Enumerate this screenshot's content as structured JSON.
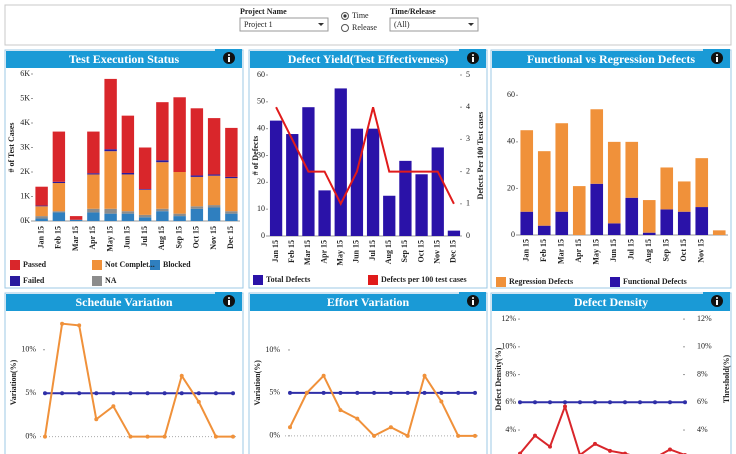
{
  "filters": {
    "project_label": "Project Name",
    "project_value": "Project 1",
    "time_option": "Time",
    "release_option": "Release",
    "time_release_label": "Time/Release",
    "time_release_value": "(All)"
  },
  "chart_data": [
    {
      "type": "bar",
      "stacked": true,
      "title": "Test Execution Status",
      "ylabel": "# of Test Cases",
      "categories": [
        "Jan 15",
        "Feb 15",
        "Mar 15",
        "Apr 15",
        "May 15",
        "Jun 15",
        "Jul 15",
        "Aug 15",
        "Sep 15",
        "Oct 15",
        "Nov 15",
        "Dec 15"
      ],
      "series": [
        {
          "name": "Blocked",
          "color": "#2f7fbf",
          "values": [
            100,
            350,
            50,
            350,
            300,
            300,
            150,
            400,
            200,
            500,
            550,
            300
          ]
        },
        {
          "name": "NA",
          "color": "#8c8c8c",
          "values": [
            100,
            50,
            0,
            150,
            200,
            100,
            100,
            100,
            100,
            100,
            100,
            100
          ]
        },
        {
          "name": "Not Complet...",
          "color": "#f0913a",
          "values": [
            400,
            1150,
            0,
            1400,
            2350,
            1500,
            1020,
            1900,
            1700,
            1200,
            1200,
            1350
          ]
        },
        {
          "name": "Failed",
          "color": "#2a1a9e",
          "values": [
            30,
            50,
            0,
            50,
            80,
            60,
            30,
            80,
            0,
            60,
            50,
            50
          ]
        },
        {
          "name": "Passed",
          "color": "#d9262b",
          "values": [
            770,
            2050,
            150,
            1700,
            2870,
            2340,
            1700,
            2370,
            3050,
            2740,
            2300,
            2000
          ]
        }
      ],
      "ylim": [
        0,
        6000
      ],
      "yticks": [
        {
          "value": 0,
          "label": "0K"
        },
        {
          "value": 1000,
          "label": "1K"
        },
        {
          "value": 2000,
          "label": "2K"
        },
        {
          "value": 3000,
          "label": "3K"
        },
        {
          "value": 4000,
          "label": "4K"
        },
        {
          "value": 5000,
          "label": "5K"
        },
        {
          "value": 6000,
          "label": "6K"
        }
      ]
    },
    {
      "type": "combo",
      "title": "Defect Yield(Test Effectiveness)",
      "ylabel": "# of Defects",
      "y2label": "Defects Per 100 Test cases",
      "categories": [
        "Jan 15",
        "Feb 15",
        "Mar 15",
        "Apr 15",
        "May 15",
        "Jun 15",
        "Jul 15",
        "Aug 15",
        "Sep 15",
        "Oct 15",
        "Nov 15",
        "Dec 15"
      ],
      "series": [
        {
          "name": "Total Defects",
          "color": "#2a12a8",
          "values": [
            43,
            38,
            48,
            17,
            55,
            40,
            40,
            15,
            28,
            23,
            33,
            2
          ]
        },
        {
          "name": "Defects per 100 test cases",
          "color": "#e01b1b",
          "axis": "y2",
          "values": [
            4,
            3,
            2,
            2,
            1,
            2,
            4,
            2,
            2,
            2,
            2,
            1
          ]
        }
      ],
      "ylim": [
        0,
        60
      ],
      "yticks": [
        0,
        10,
        20,
        30,
        40,
        50,
        60
      ],
      "y2lim": [
        0,
        5
      ],
      "y2ticks": [
        0,
        1,
        2,
        3,
        4,
        5
      ]
    },
    {
      "type": "bar",
      "stacked": true,
      "title": "Functional vs Regression Defects",
      "categories": [
        "Jan 15",
        "Feb 15",
        "Mar 15",
        "Apr 15",
        "May 15",
        "Jun 15",
        "Jul 15",
        "Aug 15",
        "Sep 15",
        "Oct 15",
        "Nov 15",
        null
      ],
      "series": [
        {
          "name": "Functional Defects",
          "color": "#2a12a8",
          "values": [
            10,
            4,
            10,
            0,
            22,
            5,
            16,
            1,
            11,
            10,
            12,
            0
          ]
        },
        {
          "name": "Regression Defects",
          "color": "#f0913a",
          "values": [
            35,
            32,
            38,
            21,
            32,
            35,
            24,
            14,
            18,
            13,
            21,
            2
          ]
        }
      ],
      "ylim": [
        0,
        70
      ],
      "yticks": [
        0,
        20,
        40,
        60
      ]
    },
    {
      "type": "line",
      "title": "Schedule Variation",
      "ylabel": "Variation(%)",
      "series": [
        {
          "color": "#2f2fa8",
          "values": [
            5,
            5,
            5,
            5,
            5,
            5,
            5,
            5,
            5,
            5,
            5,
            5
          ]
        },
        {
          "color": "#f0913a",
          "values": [
            0,
            13,
            12.8,
            2,
            3.5,
            0,
            0,
            0,
            7,
            4,
            0,
            0
          ]
        }
      ],
      "ylim": [
        -2,
        14
      ],
      "yticks": [
        {
          "value": 0,
          "label": "0%"
        },
        {
          "value": 5,
          "label": "5%"
        },
        {
          "value": 10,
          "label": "10%"
        }
      ]
    },
    {
      "type": "line",
      "title": "Effort Variation",
      "ylabel": "Variation(%)",
      "series": [
        {
          "color": "#2f2fa8",
          "values": [
            5,
            5,
            5,
            5,
            5,
            5,
            5,
            5,
            5,
            5,
            5,
            5
          ]
        },
        {
          "color": "#f0913a",
          "values": [
            1,
            5,
            7,
            3,
            2,
            0,
            1,
            0,
            7,
            4,
            0,
            0
          ]
        }
      ],
      "ylim": [
        -2,
        14
      ],
      "yticks": [
        {
          "value": 0,
          "label": "0%"
        },
        {
          "value": 5,
          "label": "5%"
        },
        {
          "value": 10,
          "label": "10%"
        }
      ]
    },
    {
      "type": "line",
      "title": "Defect Density",
      "ylabel": "Defect Density(%)",
      "y2label": "Threshold(%)",
      "series": [
        {
          "color": "#2f2fa8",
          "axis": "y2",
          "values": [
            6,
            6,
            6,
            6,
            6,
            6,
            6,
            6,
            6,
            6,
            6,
            6
          ]
        },
        {
          "color": "#d9262b",
          "values": [
            2.3,
            3.6,
            2.8,
            5.7,
            2.2,
            3.0,
            2.5,
            2.3,
            2.0,
            2.0,
            2.6,
            2.2
          ]
        }
      ],
      "ylim": [
        2.2,
        12.8
      ],
      "yticks": [
        {
          "value": 4,
          "label": "4%"
        },
        {
          "value": 6,
          "label": "6%"
        },
        {
          "value": 8,
          "label": "8%"
        },
        {
          "value": 10,
          "label": "10%"
        },
        {
          "value": 12,
          "label": "12%"
        }
      ],
      "y2lim": [
        2.2,
        12.8
      ],
      "y2ticks": [
        {
          "value": 4,
          "label": "4%"
        },
        {
          "value": 6,
          "label": "6%"
        },
        {
          "value": 8,
          "label": "8%"
        },
        {
          "value": 10,
          "label": "10%"
        },
        {
          "value": 12,
          "label": "12%"
        }
      ]
    }
  ]
}
